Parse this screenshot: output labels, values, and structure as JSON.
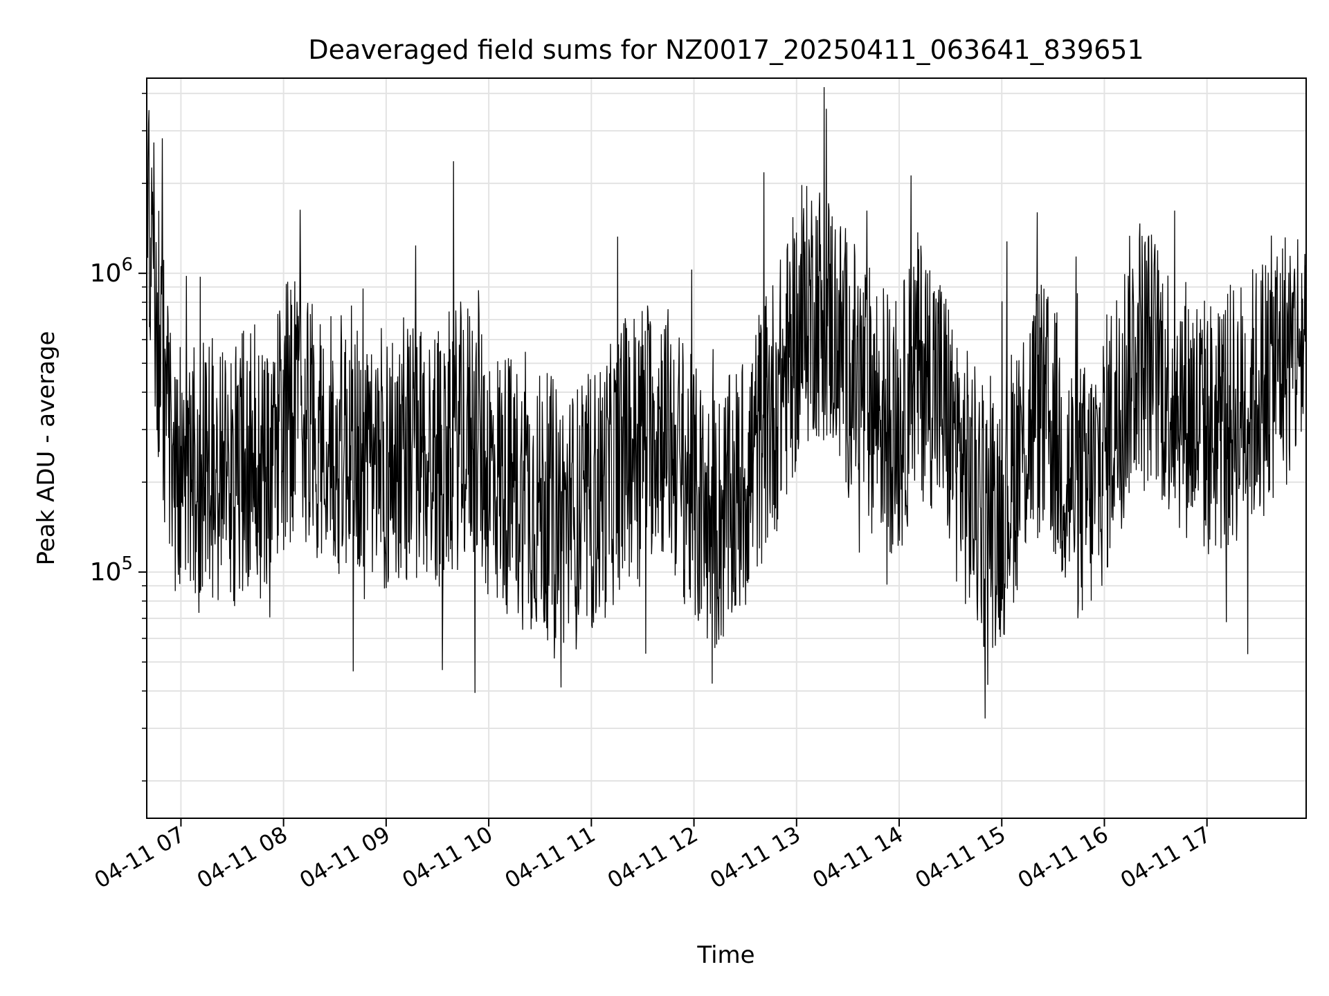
{
  "chart_data": {
    "type": "line",
    "title": "Deaveraged field sums for NZ0017_20250411_063641_839651",
    "xlabel": "Time",
    "ylabel": "Peak ADU - average",
    "x_range": [
      "2025-04-11T06:40:00",
      "2025-04-11T17:58:00"
    ],
    "xlim_times": [
      "06:40",
      "17:58"
    ],
    "yscale": "log",
    "ylim": [
      15000,
      4500000
    ],
    "grid": true,
    "line_color": "#000000",
    "x_ticks": [
      {
        "time": "07:00",
        "label": "04-11 07"
      },
      {
        "time": "08:00",
        "label": "04-11 08"
      },
      {
        "time": "09:00",
        "label": "04-11 09"
      },
      {
        "time": "10:00",
        "label": "04-11 10"
      },
      {
        "time": "11:00",
        "label": "04-11 11"
      },
      {
        "time": "12:00",
        "label": "04-11 12"
      },
      {
        "time": "13:00",
        "label": "04-11 13"
      },
      {
        "time": "14:00",
        "label": "04-11 14"
      },
      {
        "time": "15:00",
        "label": "04-11 15"
      },
      {
        "time": "16:00",
        "label": "04-11 16"
      },
      {
        "time": "17:00",
        "label": "04-11 17"
      }
    ],
    "y_ticks": [
      {
        "value": 100000,
        "base": "10",
        "exp": "5"
      },
      {
        "value": 1000000,
        "base": "10",
        "exp": "6"
      }
    ],
    "series": [
      {
        "x": [
          "06:40",
          "06:45",
          "06:50",
          "06:55",
          "07:00",
          "07:10",
          "07:20",
          "07:30",
          "07:40",
          "07:50",
          "08:00",
          "08:10",
          "08:20",
          "08:30",
          "08:40",
          "08:50",
          "09:00",
          "09:10",
          "09:20",
          "09:30",
          "09:40",
          "09:50",
          "10:00",
          "10:10",
          "10:20",
          "10:30",
          "10:40",
          "10:50",
          "11:00",
          "11:10",
          "11:20",
          "11:30",
          "11:40",
          "11:50",
          "12:00",
          "12:10",
          "12:20",
          "12:30",
          "12:40",
          "12:50",
          "13:00",
          "13:10",
          "13:20",
          "13:30",
          "13:40",
          "13:50",
          "14:00",
          "14:10",
          "14:20",
          "14:30",
          "14:40",
          "14:50",
          "15:00",
          "15:10",
          "15:20",
          "15:30",
          "15:40",
          "15:50",
          "16:00",
          "16:10",
          "16:20",
          "16:30",
          "16:40",
          "16:50",
          "17:00",
          "17:10",
          "17:20",
          "17:30",
          "17:40",
          "17:50",
          "17:58"
        ],
        "values": [
          1500000,
          900000,
          400000,
          250000,
          220000,
          200000,
          230000,
          210000,
          250000,
          240000,
          320000,
          380000,
          300000,
          260000,
          280000,
          200000,
          230000,
          260000,
          250000,
          240000,
          280000,
          300000,
          220000,
          200000,
          180000,
          170000,
          160000,
          150000,
          170000,
          200000,
          260000,
          300000,
          320000,
          250000,
          180000,
          140000,
          160000,
          200000,
          300000,
          400000,
          600000,
          800000,
          700000,
          500000,
          400000,
          350000,
          300000,
          500000,
          450000,
          300000,
          200000,
          150000,
          160000,
          250000,
          350000,
          300000,
          200000,
          180000,
          250000,
          400000,
          600000,
          500000,
          400000,
          350000,
          300000,
          320000,
          350000,
          400000,
          500000,
          550000,
          600000
        ]
      }
    ]
  }
}
